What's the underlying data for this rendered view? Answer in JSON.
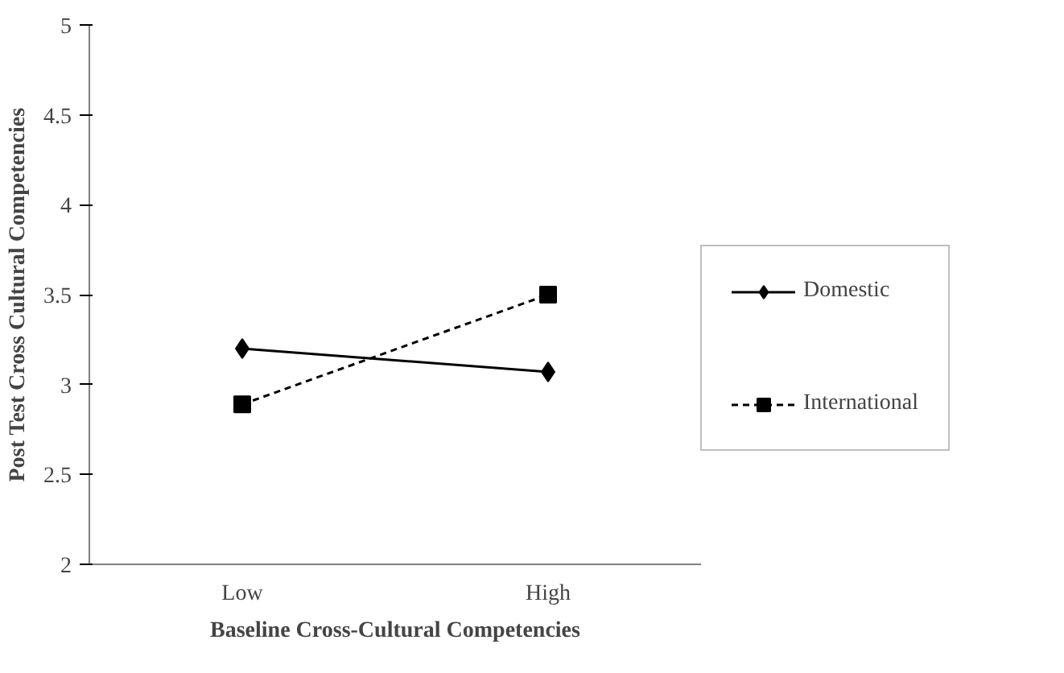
{
  "chart_data": {
    "type": "line",
    "xlabel": "Baseline Cross-Cultural Competencies",
    "ylabel": "Post Test Cross Cultural Competencies",
    "categories": [
      "Low",
      "High"
    ],
    "series": [
      {
        "name": "Domestic",
        "color": "#000000",
        "values": [
          3.2,
          3.07
        ],
        "marker": "diamond",
        "line_style": "solid"
      },
      {
        "name": "International",
        "color": "#000000",
        "values": [
          2.89,
          3.5
        ],
        "marker": "square",
        "line_style": "dashed"
      }
    ],
    "ylim": [
      2,
      5
    ],
    "yticks": [
      2,
      2.5,
      3,
      3.5,
      4,
      4.5,
      5
    ],
    "legend": "right"
  }
}
